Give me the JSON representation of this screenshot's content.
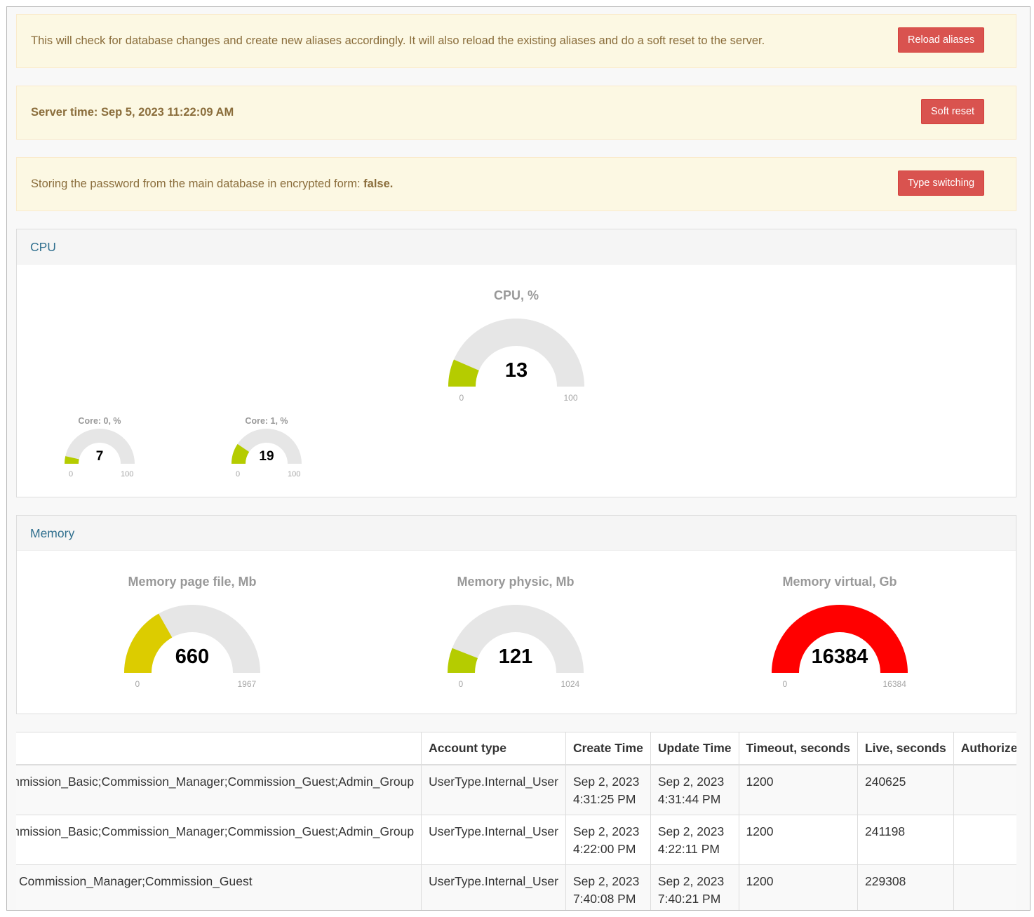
{
  "alerts": {
    "reload": {
      "message": "This will check for database changes and create new aliases accordingly. It will also reload the existing aliases and do a soft reset to the server.",
      "button": "Reload aliases"
    },
    "server_time": {
      "label": "Server time: Sep 5, 2023 11:22:09 AM",
      "button": "Soft reset"
    },
    "password": {
      "prefix": "Storing the password from the main database in encrypted form: ",
      "value": "false.",
      "button": "Type switching"
    }
  },
  "cpu_panel": {
    "heading": "CPU",
    "total": {
      "title": "CPU, %",
      "value": "13",
      "min": "0",
      "max": "100",
      "fraction": 0.13,
      "color": "#b5cc00"
    },
    "cores": [
      {
        "title": "Core: 0, %",
        "value": "7",
        "min": "0",
        "max": "100",
        "fraction": 0.07,
        "color": "#b5cc00"
      },
      {
        "title": "Core: 1, %",
        "value": "19",
        "min": "0",
        "max": "100",
        "fraction": 0.19,
        "color": "#b5cc00"
      }
    ]
  },
  "memory_panel": {
    "heading": "Memory",
    "gauges": [
      {
        "title": "Memory page file, Mb",
        "value": "660",
        "min": "0",
        "max": "1967",
        "fraction": 0.3355,
        "color": "#dccc00"
      },
      {
        "title": "Memory physic, Mb",
        "value": "121",
        "min": "0",
        "max": "1024",
        "fraction": 0.1182,
        "color": "#b5cc00"
      },
      {
        "title": "Memory virtual, Gb",
        "value": "16384",
        "min": "0",
        "max": "16384",
        "fraction": 1.0,
        "color": "#ff0000"
      }
    ]
  },
  "sessions_table": {
    "columns": [
      "",
      "Account type",
      "Create Time",
      "Update Time",
      "Timeout, seconds",
      "Live, seconds",
      "Authorized"
    ],
    "rows": [
      {
        "roles": "Commission_Basic;Commission_Manager;Commission_Guest;Admin_Group",
        "account_type": "UserType.Internal_User",
        "create_date": "Sep 2, 2023",
        "create_time": "4:31:25 PM",
        "update_date": "Sep 2, 2023",
        "update_time": "4:31:44 PM",
        "timeout": "1200",
        "live": "240625",
        "authorized": ""
      },
      {
        "roles": "Commission_Basic;Commission_Manager;Commission_Guest;Admin_Group",
        "account_type": "UserType.Internal_User",
        "create_date": "Sep 2, 2023",
        "create_time": "4:22:00 PM",
        "update_date": "Sep 2, 2023",
        "update_time": "4:22:11 PM",
        "timeout": "1200",
        "live": "241198",
        "authorized": ""
      },
      {
        "roles": "Commission_Manager;Commission_Guest",
        "account_type": "UserType.Internal_User",
        "create_date": "Sep 2, 2023",
        "create_time": "7:40:08 PM",
        "update_date": "Sep 2, 2023",
        "update_time": "7:40:21 PM",
        "timeout": "1200",
        "live": "229308",
        "authorized": ""
      }
    ]
  }
}
